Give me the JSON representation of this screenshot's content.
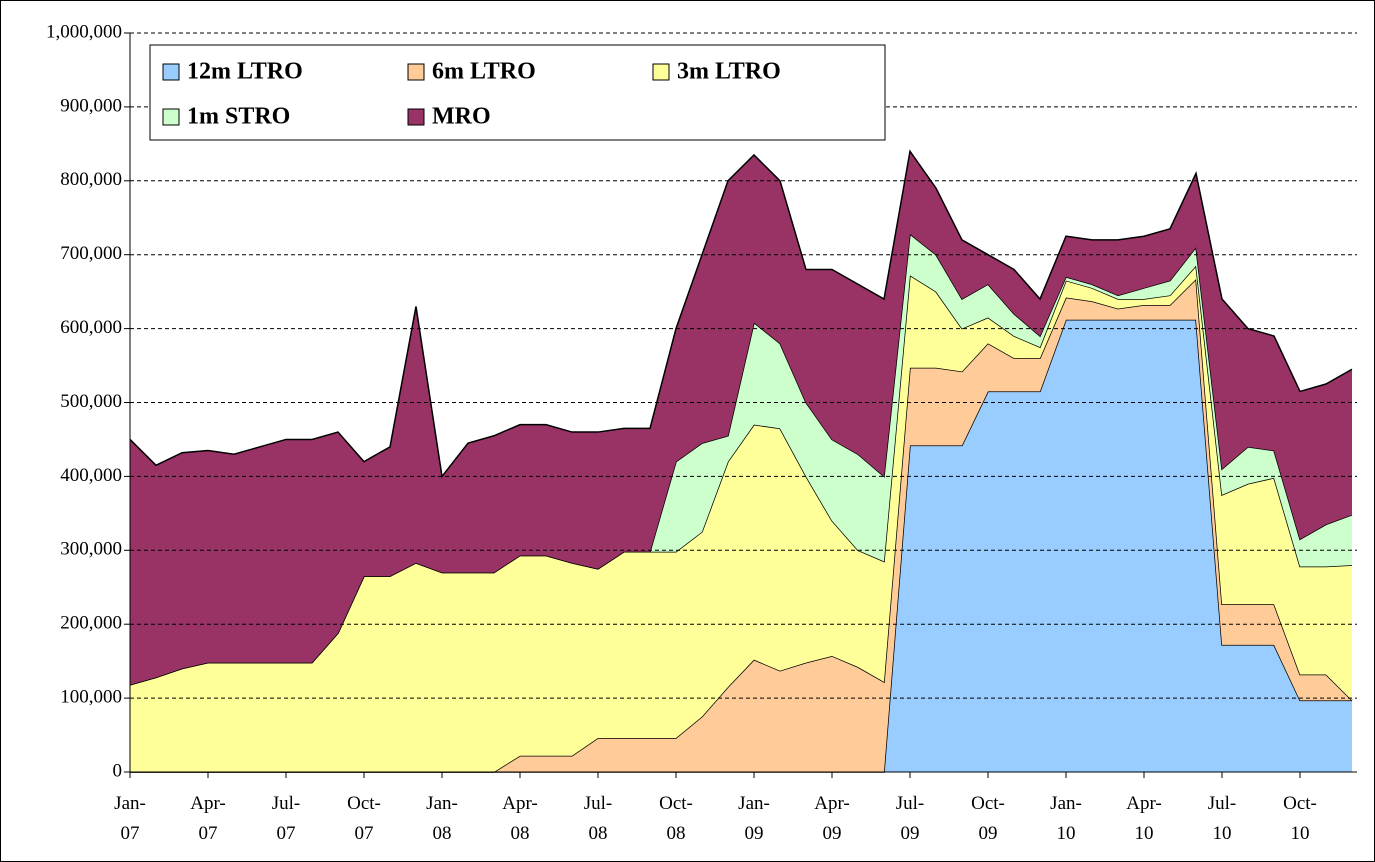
{
  "chart_data": {
    "type": "stacked-area",
    "categories": [
      "Jan-07",
      null,
      null,
      "Apr-07",
      null,
      null,
      "Jul-07",
      null,
      null,
      "Oct-07",
      null,
      null,
      "Jan-08",
      null,
      null,
      "Apr-08",
      null,
      null,
      "Jul-08",
      null,
      null,
      "Oct-08",
      null,
      null,
      "Jan-09",
      null,
      null,
      "Apr-09",
      null,
      null,
      "Jul-09",
      null,
      null,
      "Oct-09",
      null,
      null,
      "Jan-10",
      null,
      null,
      "Apr-10",
      null,
      null,
      "Jul-10",
      null,
      null,
      "Oct-10",
      null,
      null
    ],
    "series": [
      {
        "name": "12m LTRO",
        "color": "#99ccff",
        "values": [
          0,
          0,
          0,
          0,
          0,
          0,
          0,
          0,
          0,
          0,
          0,
          0,
          0,
          0,
          0,
          0,
          0,
          0,
          0,
          0,
          0,
          0,
          0,
          0,
          0,
          0,
          0,
          0,
          0,
          0,
          442000,
          442000,
          442000,
          515000,
          515000,
          515000,
          612000,
          612000,
          612000,
          612000,
          612000,
          612000,
          172000,
          172000,
          172000,
          97000,
          97000,
          97000
        ]
      },
      {
        "name": "6m LTRO",
        "color": "#ffcc99",
        "values": [
          0,
          0,
          0,
          0,
          0,
          0,
          0,
          0,
          0,
          0,
          0,
          0,
          0,
          0,
          0,
          22000,
          22000,
          22000,
          46000,
          46000,
          46000,
          46000,
          75000,
          115000,
          152000,
          137000,
          148000,
          157000,
          142000,
          122000,
          105000,
          105000,
          100000,
          65000,
          45000,
          45000,
          30000,
          25000,
          15000,
          20000,
          20000,
          55000,
          55000,
          55000,
          55000,
          35000,
          35000,
          0
        ]
      },
      {
        "name": "3m LTRO",
        "color": "#ffff99",
        "values": [
          118000,
          128000,
          140000,
          148000,
          148000,
          148000,
          148000,
          148000,
          188000,
          265000,
          265000,
          283000,
          270000,
          270000,
          270000,
          271000,
          271000,
          261000,
          229000,
          252000,
          252000,
          252000,
          250000,
          305000,
          318000,
          328000,
          252000,
          183000,
          158000,
          163000,
          125000,
          103000,
          58000,
          35000,
          30000,
          15000,
          23000,
          18000,
          13000,
          8000,
          13000,
          18000,
          148000,
          163000,
          171000,
          146000,
          146000,
          183000
        ]
      },
      {
        "name": "1m STRO",
        "color": "#ccffcc",
        "values": [
          0,
          0,
          0,
          0,
          0,
          0,
          0,
          0,
          0,
          0,
          0,
          0,
          0,
          0,
          0,
          0,
          0,
          0,
          0,
          0,
          0,
          122000,
          120000,
          35000,
          138000,
          115000,
          100000,
          110000,
          130000,
          115000,
          56000,
          50000,
          40000,
          45000,
          30000,
          15000,
          5000,
          5000,
          5000,
          15000,
          20000,
          25000,
          35000,
          50000,
          37000,
          37000,
          57000,
          68000
        ]
      },
      {
        "name": "MRO",
        "color": "#993366",
        "values": [
          332000,
          287000,
          292000,
          287000,
          282000,
          292000,
          302000,
          302000,
          272000,
          155000,
          175000,
          347000,
          130000,
          175000,
          185000,
          177000,
          177000,
          177000,
          185000,
          167000,
          167000,
          180000,
          255000,
          345000,
          227000,
          220000,
          180000,
          230000,
          230000,
          240000,
          112000,
          90000,
          80000,
          40000,
          60000,
          50000,
          55000,
          60000,
          75000,
          70000,
          70000,
          100000,
          230000,
          160000,
          155000,
          200000,
          190000,
          197000
        ]
      }
    ],
    "ylim": [
      0,
      1000000
    ],
    "yticks": [
      0,
      {
        "value": 100000,
        "label": "100,000"
      },
      {
        "value": 200000,
        "label": "200,000"
      },
      {
        "value": 300000,
        "label": "300,000"
      },
      {
        "value": 400000,
        "label": "400,000"
      },
      {
        "value": 500000,
        "label": "500,000"
      },
      {
        "value": 600000,
        "label": "600,000"
      },
      {
        "value": 700000,
        "label": "700,000"
      },
      {
        "value": 800000,
        "label": "800,000"
      },
      {
        "value": 900000,
        "label": "900,000"
      },
      {
        "value": 1000000,
        "label": "1,000,000"
      }
    ],
    "grid": true,
    "legend": "top-left"
  }
}
